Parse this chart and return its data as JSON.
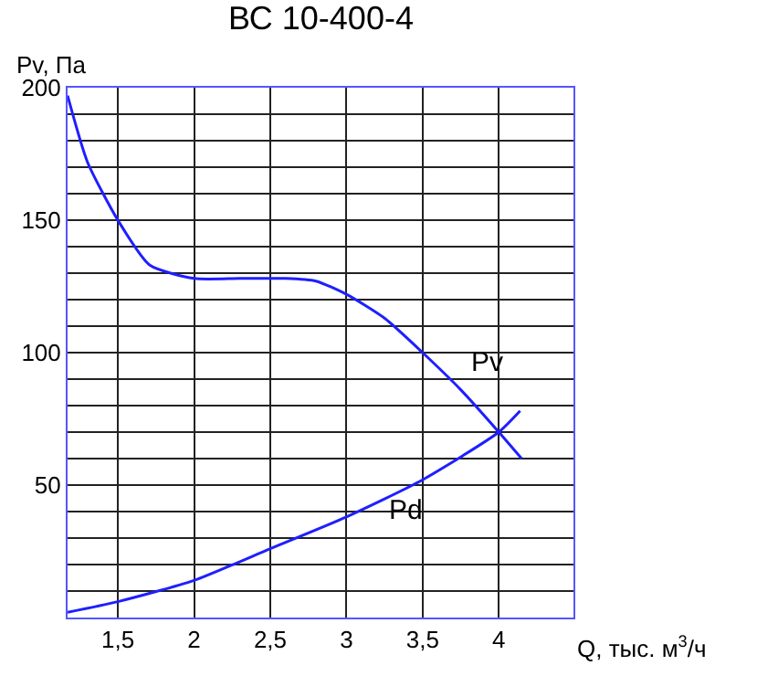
{
  "chart_data": {
    "type": "line",
    "title": "ВС 10-400-4",
    "xlabel": "Q, тыс. м$^{3}$/ч",
    "ylabel": "Pv, Па",
    "xlim": [
      1.17,
      4.49
    ],
    "ylim": [
      0,
      200
    ],
    "xticks": [
      {
        "value": 1.5,
        "label": "1,5"
      },
      2,
      {
        "value": 2.5,
        "label": "2,5"
      },
      3,
      {
        "value": 3.5,
        "label": "3,5"
      },
      4
    ],
    "yticks": [
      {
        "value": 10,
        "label": null
      },
      {
        "value": 20,
        "label": null
      },
      {
        "value": 30,
        "label": null
      },
      {
        "value": 40,
        "label": null
      },
      50,
      {
        "value": 60,
        "label": null
      },
      {
        "value": 70,
        "label": null
      },
      {
        "value": 80,
        "label": null
      },
      {
        "value": 90,
        "label": null
      },
      100,
      {
        "value": 110,
        "label": null
      },
      {
        "value": 120,
        "label": null
      },
      {
        "value": 130,
        "label": null
      },
      {
        "value": 140,
        "label": null
      },
      150,
      {
        "value": 160,
        "label": null
      },
      {
        "value": 170,
        "label": null
      },
      {
        "value": 180,
        "label": null
      },
      {
        "value": 190,
        "label": null
      },
      200
    ],
    "grid": true,
    "legend": false,
    "marker": "none",
    "line_style": "solid",
    "series": [
      {
        "name": "Pv",
        "color": "#1f1fff",
        "x": [
          1.17,
          1.3,
          1.5,
          1.71,
          2.0,
          2.3,
          2.6,
          2.8,
          3.0,
          3.25,
          3.5,
          3.75,
          4.0,
          4.15
        ],
        "values": [
          197,
          172,
          150,
          133,
          128,
          128,
          128,
          127,
          122,
          113,
          100,
          86,
          70,
          60
        ]
      },
      {
        "name": "Pd",
        "color": "#1f1fff",
        "x": [
          1.17,
          1.5,
          2.0,
          2.5,
          3.0,
          3.5,
          4.0,
          4.14
        ],
        "values": [
          2,
          6,
          14,
          26,
          38,
          52,
          70,
          78
        ]
      }
    ]
  }
}
